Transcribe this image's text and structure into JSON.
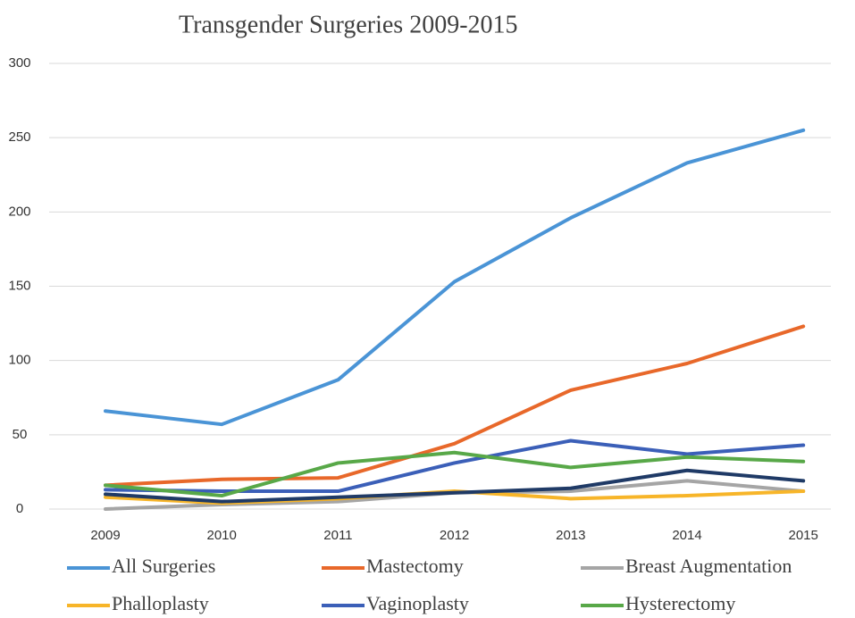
{
  "chart_data": {
    "type": "line",
    "title": "Transgender Surgeries 2009-2015",
    "categories": [
      "2009",
      "2010",
      "2011",
      "2012",
      "2013",
      "2014",
      "2015"
    ],
    "series": [
      {
        "name": "All Surgeries",
        "color": "#4a94d6",
        "values": [
          66,
          57,
          87,
          153,
          196,
          233,
          255
        ]
      },
      {
        "name": "Mastectomy",
        "color": "#e8682a",
        "values": [
          16,
          20,
          21,
          44,
          80,
          98,
          123
        ]
      },
      {
        "name": "Breast Augmentation",
        "color": "#a5a5a5",
        "values": [
          0,
          3,
          5,
          11,
          12,
          19,
          12
        ]
      },
      {
        "name": "Phalloplasty",
        "color": "#f7b529",
        "values": [
          8,
          4,
          7,
          12,
          7,
          9,
          12
        ]
      },
      {
        "name": "Vaginoplasty",
        "color": "#3b5fb8",
        "values": [
          13,
          12,
          12,
          31,
          46,
          37,
          43
        ]
      },
      {
        "name": "Hysterectomy",
        "color": "#58a848",
        "values": [
          16,
          9,
          31,
          38,
          28,
          35,
          32
        ]
      },
      {
        "color": "#1f3a66",
        "values": [
          10,
          5,
          8,
          11,
          14,
          26,
          19
        ]
      }
    ],
    "ylim": [
      0,
      300
    ],
    "yticks": [
      0,
      50,
      100,
      150,
      200,
      250,
      300
    ],
    "grid": true
  }
}
